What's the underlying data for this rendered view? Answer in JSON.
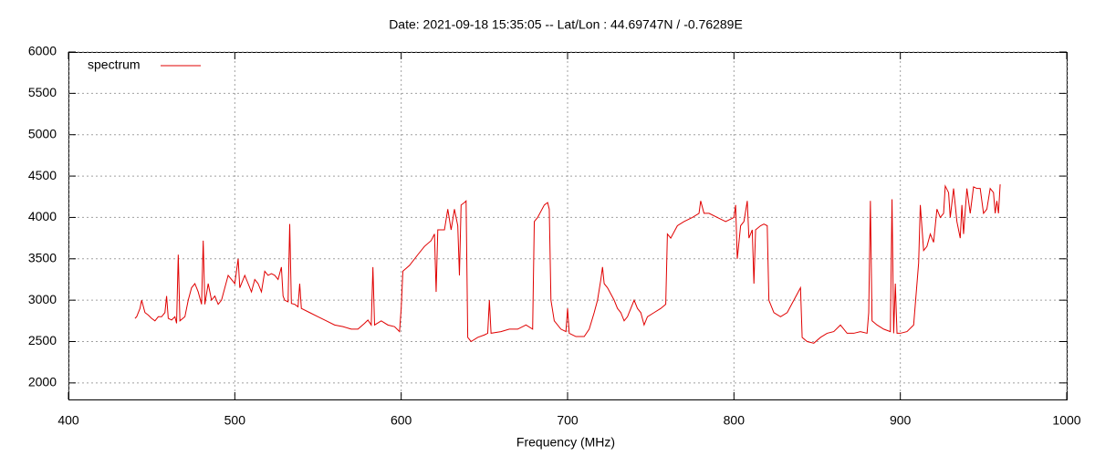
{
  "chart_data": {
    "type": "line",
    "title": "Date: 2021-09-18 15:35:05  --  Lat/Lon : 44.69747N / -0.76289E",
    "x_label": "Frequency (MHz)",
    "xlim": [
      400,
      1000
    ],
    "xticks": [
      400,
      500,
      600,
      700,
      800,
      900,
      1000
    ],
    "ylim": [
      1800,
      6000
    ],
    "yticks": [
      2000,
      2500,
      3000,
      3500,
      4000,
      4500,
      5000,
      5500,
      6000
    ],
    "grid": true,
    "legend": "top-left",
    "x": [
      440,
      441,
      443,
      444,
      446,
      448,
      450,
      452,
      454,
      456,
      458,
      459,
      460,
      462,
      464,
      465,
      466,
      467,
      470,
      472,
      474,
      476,
      478,
      480,
      481,
      482,
      484,
      486,
      488,
      490,
      492,
      494,
      496,
      498,
      500,
      502,
      503,
      506,
      508,
      510,
      512,
      514,
      516,
      518,
      520,
      522,
      524,
      526,
      528,
      529,
      530,
      532,
      533,
      534,
      536,
      538,
      539,
      540,
      545,
      550,
      555,
      560,
      565,
      570,
      574,
      578,
      580,
      582,
      583,
      584,
      588,
      592,
      596,
      599,
      600,
      601,
      605,
      610,
      614,
      618,
      620,
      621,
      622,
      626,
      628,
      630,
      632,
      634,
      635,
      636,
      638,
      639,
      640,
      642,
      646,
      650,
      652,
      653,
      654,
      660,
      665,
      670,
      675,
      679,
      680,
      682,
      686,
      688,
      689,
      690,
      692,
      696,
      699,
      700,
      701,
      705,
      710,
      713,
      716,
      718,
      720,
      721,
      722,
      724,
      728,
      730,
      732,
      734,
      736,
      738,
      740,
      742,
      744,
      746,
      748,
      752,
      756,
      759,
      760,
      762,
      766,
      770,
      775,
      779,
      780,
      782,
      785,
      790,
      795,
      800,
      801,
      802,
      804,
      806,
      808,
      809,
      811,
      812,
      813,
      816,
      818,
      820,
      821,
      824,
      828,
      832,
      836,
      840,
      841,
      844,
      848,
      852,
      856,
      860,
      864,
      868,
      872,
      876,
      880,
      881,
      882,
      883,
      886,
      890,
      894,
      895,
      896,
      897,
      898,
      900,
      904,
      908,
      911,
      912,
      914,
      916,
      918,
      920,
      922,
      924,
      926,
      927,
      929,
      930,
      932,
      934,
      936,
      937,
      938,
      940,
      942,
      944,
      946,
      948,
      950,
      952,
      954,
      956,
      957,
      958,
      959,
      960
    ],
    "series": [
      {
        "name": "spectrum",
        "color": "#e00000",
        "values": [
          2780,
          2800,
          2900,
          3000,
          2850,
          2820,
          2780,
          2750,
          2800,
          2800,
          2850,
          3050,
          2780,
          2760,
          2800,
          2720,
          3550,
          2750,
          2800,
          3000,
          3150,
          3200,
          3100,
          2950,
          3720,
          2950,
          3200,
          3000,
          3050,
          2950,
          3000,
          3150,
          3300,
          3250,
          3200,
          3500,
          3150,
          3300,
          3200,
          3100,
          3250,
          3200,
          3100,
          3350,
          3300,
          3320,
          3300,
          3250,
          3400,
          3050,
          3000,
          2980,
          3920,
          2960,
          2950,
          2920,
          3200,
          2900,
          2850,
          2800,
          2750,
          2700,
          2680,
          2650,
          2650,
          2720,
          2760,
          2700,
          3400,
          2700,
          2750,
          2700,
          2680,
          2620,
          2900,
          3350,
          3420,
          3550,
          3650,
          3720,
          3800,
          3100,
          3850,
          3850,
          4100,
          3850,
          4100,
          3900,
          3300,
          4150,
          4180,
          4200,
          2550,
          2500,
          2550,
          2580,
          2600,
          3000,
          2600,
          2620,
          2650,
          2650,
          2700,
          2650,
          3950,
          4000,
          4150,
          4180,
          4100,
          3000,
          2750,
          2650,
          2620,
          2900,
          2600,
          2560,
          2560,
          2650,
          2850,
          3000,
          3250,
          3400,
          3200,
          3150,
          3000,
          2900,
          2850,
          2750,
          2800,
          2900,
          3000,
          2900,
          2850,
          2700,
          2800,
          2850,
          2900,
          2950,
          3800,
          3750,
          3900,
          3950,
          4000,
          4050,
          4200,
          4050,
          4050,
          4000,
          3950,
          4000,
          4150,
          3500,
          3900,
          3950,
          4200,
          3750,
          3850,
          3200,
          3850,
          3900,
          3920,
          3900,
          3000,
          2850,
          2800,
          2850,
          3000,
          3150,
          2550,
          2500,
          2480,
          2550,
          2600,
          2620,
          2700,
          2600,
          2600,
          2620,
          2600,
          2850,
          4200,
          2750,
          2700,
          2650,
          2620,
          4220,
          2600,
          3200,
          2600,
          2600,
          2620,
          2700,
          3450,
          4150,
          3600,
          3650,
          3800,
          3700,
          4100,
          4000,
          4050,
          4380,
          4300,
          4000,
          4350,
          3950,
          3750,
          4150,
          3800,
          4350,
          4050,
          4370,
          4350,
          4350,
          4050,
          4100,
          4350,
          4300,
          4050,
          4200,
          4050,
          4400
        ]
      }
    ]
  }
}
